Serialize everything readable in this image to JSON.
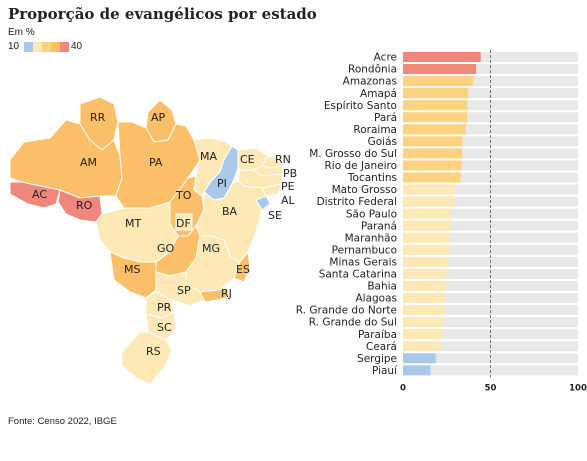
{
  "title": "Proporção de evangélicos por estado",
  "subtitle": "Em %",
  "legend": {
    "min_label": "10",
    "max_label": "40",
    "colors": [
      "#a9c9ea",
      "#fde8b6",
      "#fdd27f",
      "#fcbf69",
      "#f0877d"
    ]
  },
  "source": "Fonte: Censo 2022, IBGE",
  "colors": {
    "track": "#e8e8e8",
    "pale": "#fde8b6",
    "mid": "#fdd27f",
    "orange": "#fcbf69",
    "red": "#f0877d",
    "blue": "#a9c9ea"
  },
  "map": {
    "states": [
      {
        "code": "RR",
        "color": "#fcbf69"
      },
      {
        "code": "AP",
        "color": "#fcbf69"
      },
      {
        "code": "AM",
        "color": "#fcbf69"
      },
      {
        "code": "PA",
        "color": "#fcbf69"
      },
      {
        "code": "AC",
        "color": "#f0877d"
      },
      {
        "code": "RO",
        "color": "#f0877d"
      },
      {
        "code": "MA",
        "color": "#fde8b6"
      },
      {
        "code": "PI",
        "color": "#a9c9ea"
      },
      {
        "code": "CE",
        "color": "#fde8b6"
      },
      {
        "code": "RN",
        "color": "#fde8b6"
      },
      {
        "code": "PB",
        "color": "#fde8b6"
      },
      {
        "code": "PE",
        "color": "#fde8b6"
      },
      {
        "code": "AL",
        "color": "#fde8b6"
      },
      {
        "code": "SE",
        "color": "#a9c9ea"
      },
      {
        "code": "TO",
        "color": "#fcbf69"
      },
      {
        "code": "BA",
        "color": "#fde8b6"
      },
      {
        "code": "MT",
        "color": "#fde8b6"
      },
      {
        "code": "DF",
        "color": "#fde8b6"
      },
      {
        "code": "GO",
        "color": "#fcbf69"
      },
      {
        "code": "MG",
        "color": "#fde8b6"
      },
      {
        "code": "ES",
        "color": "#fcbf69"
      },
      {
        "code": "MS",
        "color": "#fcbf69"
      },
      {
        "code": "SP",
        "color": "#fde8b6"
      },
      {
        "code": "RJ",
        "color": "#fcbf69"
      },
      {
        "code": "PR",
        "color": "#fde8b6"
      },
      {
        "code": "SC",
        "color": "#fde8b6"
      },
      {
        "code": "RS",
        "color": "#fde8b6"
      }
    ]
  },
  "chart_data": {
    "type": "bar",
    "orientation": "horizontal",
    "xlim": [
      0,
      100
    ],
    "xticks": [
      0,
      50,
      100
    ],
    "reference_line": 50,
    "categories": [
      "Acre",
      "Rondônia",
      "Amazonas",
      "Amapá",
      "Espírito Santo",
      "Pará",
      "Roraima",
      "Goiás",
      "M. Grosso do Sul",
      "Rio de Janeiro",
      "Tocantins",
      "Mato Grosso",
      "Distrito Federal",
      "São Paulo",
      "Paraná",
      "Maranhão",
      "Pernambuco",
      "Minas Gerais",
      "Santa Catarina",
      "Bahia",
      "Alagoas",
      "R. Grande do Norte",
      "R. Grande do Sul",
      "Paraíba",
      "Ceará",
      "Sergipe",
      "Piauí"
    ],
    "values": [
      44.4,
      41.8,
      40.1,
      37.4,
      36.8,
      36.7,
      36.0,
      34.0,
      33.8,
      33.5,
      32.9,
      30.0,
      29.5,
      27.5,
      27.5,
      26.5,
      26.5,
      26.0,
      25.0,
      24.5,
      24.0,
      23.5,
      23.0,
      22.5,
      21.5,
      18.7,
      15.6
    ],
    "bar_colors": [
      "#f0877d",
      "#f0877d",
      "#fdd27f",
      "#fdd27f",
      "#fdd27f",
      "#fdd27f",
      "#fdd27f",
      "#fdd27f",
      "#fdd27f",
      "#fdd27f",
      "#fdd27f",
      "#fde8b6",
      "#fde8b6",
      "#fde8b6",
      "#fde8b6",
      "#fde8b6",
      "#fde8b6",
      "#fde8b6",
      "#fde8b6",
      "#fde8b6",
      "#fde8b6",
      "#fde8b6",
      "#fde8b6",
      "#fde8b6",
      "#fde8b6",
      "#a9c9ea",
      "#a9c9ea"
    ]
  }
}
